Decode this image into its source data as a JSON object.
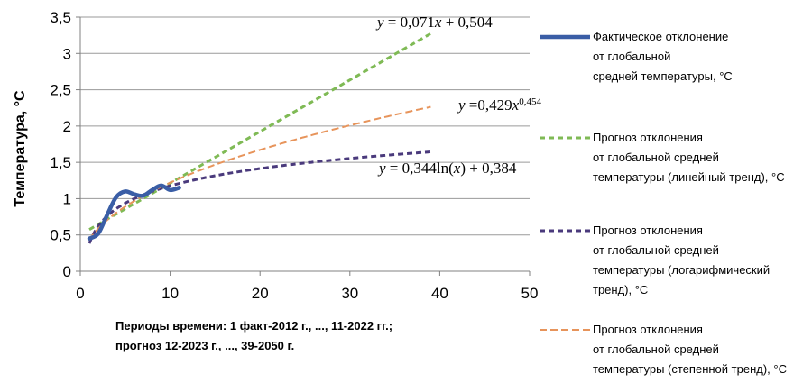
{
  "chart_data": {
    "type": "line",
    "ylabel": "Температура, °С",
    "xlabel_lines": [
      "Периоды времени: 1 факт-2012 г., ..., 11-2022 гг.;",
      "прогноз 12-2023 г., ..., 39-2050 г."
    ],
    "xlim": [
      0,
      50
    ],
    "ylim": [
      0,
      3.5
    ],
    "x_ticks": [
      "0",
      "10",
      "20",
      "30",
      "40",
      "50"
    ],
    "y_ticks": [
      "0",
      "0,5",
      "1",
      "1,5",
      "2",
      "2,5",
      "3",
      "3,5"
    ],
    "grid": "horizontal",
    "legend_position": "right",
    "series": [
      {
        "name_lines": [
          "Фактическое отклонение",
          "от глобальной",
          "средней температуры, °С"
        ],
        "style": "solid",
        "color": "#3a5ea6",
        "x": [
          1,
          2,
          3,
          4,
          5,
          6,
          7,
          8,
          9,
          10,
          11
        ],
        "values": [
          0.45,
          0.52,
          0.78,
          1.02,
          1.1,
          1.06,
          1.04,
          1.12,
          1.18,
          1.12,
          1.15
        ]
      },
      {
        "name_lines": [
          "Прогноз отклонения",
          "от глобальной средней",
          "температуры (линейный тренд), °С"
        ],
        "style": "dashed",
        "color": "#7fba55",
        "fit": "linear",
        "a": 0.071,
        "b": 0.504,
        "x_range": [
          1,
          39
        ]
      },
      {
        "name_lines": [
          "Прогноз отклонения",
          "от глобальной средней",
          "температуры (логарифмический",
          "тренд), °С"
        ],
        "style": "dashed",
        "color": "#4a3a7c",
        "fit": "log",
        "a": 0.344,
        "b": 0.384,
        "x_range": [
          1,
          39
        ]
      },
      {
        "name_lines": [
          "Прогноз отклонения",
          "от глобальной средней",
          "температуры (степенной тренд), °С"
        ],
        "style": "dashed",
        "color": "#e7945b",
        "fit": "power",
        "a": 0.429,
        "b": 0.454,
        "x_range": [
          1,
          39
        ]
      }
    ],
    "annotations": [
      {
        "series_index": 1,
        "parts": [
          "y",
          " = 0,071",
          "x",
          " + 0,504"
        ]
      },
      {
        "series_index": 3,
        "parts": [
          "y",
          " =0,429",
          "x",
          "0,454"
        ]
      },
      {
        "series_index": 2,
        "parts": [
          "y",
          " = 0,344ln(",
          "x",
          ") + 0,384"
        ]
      }
    ]
  }
}
